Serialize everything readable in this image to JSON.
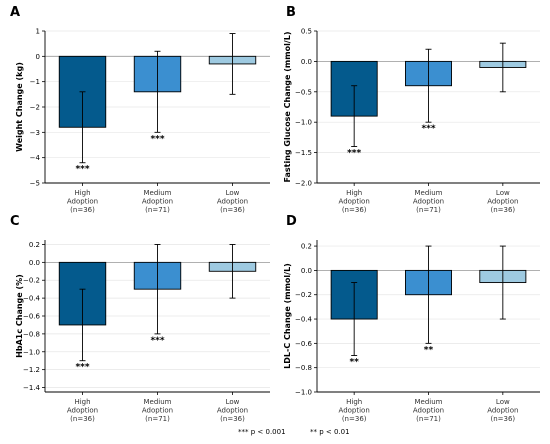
{
  "colors": {
    "high": "#045a8d",
    "medium": "#3b8fd0",
    "low": "#9ecae1"
  },
  "footnote": {
    "three_star": "*** p < 0.001",
    "two_star": "** p < 0.01"
  },
  "chart_data": [
    {
      "panel": "A",
      "type": "bar",
      "ylabel": "Weight Change (kg)",
      "ylim": [
        -5,
        1
      ],
      "yticks": [
        1,
        0,
        -1,
        -2,
        -3,
        -4,
        -5
      ],
      "categories": [
        [
          "High",
          "Adoption",
          "(n=36)"
        ],
        [
          "Medium",
          "Adoption",
          "(n=71)"
        ],
        [
          "Low",
          "Adoption",
          "(n=36)"
        ]
      ],
      "values": [
        -2.8,
        -1.4,
        -0.3
      ],
      "error_low": [
        -4.2,
        -3.0,
        -1.5
      ],
      "error_high": [
        -1.4,
        0.2,
        0.9
      ],
      "significance": [
        "***",
        "***",
        ""
      ],
      "grid": true
    },
    {
      "panel": "B",
      "type": "bar",
      "ylabel": "Fasting Glucose Change (mmol/L)",
      "ylim": [
        -2.0,
        0.5
      ],
      "yticks": [
        0.5,
        0.0,
        -0.5,
        -1.0,
        -1.5,
        -2.0
      ],
      "categories": [
        [
          "High",
          "Adoption",
          "(n=36)"
        ],
        [
          "Medium",
          "Adoption",
          "(n=71)"
        ],
        [
          "Low",
          "Adoption",
          "(n=36)"
        ]
      ],
      "values": [
        -0.9,
        -0.4,
        -0.1
      ],
      "error_low": [
        -1.4,
        -1.0,
        -0.5
      ],
      "error_high": [
        -0.4,
        0.2,
        0.3
      ],
      "significance": [
        "***",
        "***",
        ""
      ],
      "grid": true
    },
    {
      "panel": "C",
      "type": "bar",
      "ylabel": "HbA1c Change (%)",
      "ylim": [
        -1.45,
        0.25
      ],
      "yticks": [
        0.2,
        0.0,
        -0.2,
        -0.4,
        -0.6,
        -0.8,
        -1.0,
        -1.2,
        -1.4
      ],
      "categories": [
        [
          "High",
          "Adoption",
          "(n=36)"
        ],
        [
          "Medium",
          "Adoption",
          "(n=71)"
        ],
        [
          "Low",
          "Adoption",
          "(n=36)"
        ]
      ],
      "values": [
        -0.7,
        -0.3,
        -0.1
      ],
      "error_low": [
        -1.1,
        -0.8,
        -0.4
      ],
      "error_high": [
        -0.3,
        0.2,
        0.2
      ],
      "significance": [
        "***",
        "***",
        ""
      ],
      "grid": true
    },
    {
      "panel": "D",
      "type": "bar",
      "ylabel": "LDL-C Change (mmol/L)",
      "ylim": [
        -1.0,
        0.25
      ],
      "yticks": [
        0.2,
        0.0,
        -0.2,
        -0.4,
        -0.6,
        -0.8,
        -1.0
      ],
      "categories": [
        [
          "High",
          "Adoption",
          "(n=36)"
        ],
        [
          "Medium",
          "Adoption",
          "(n=71)"
        ],
        [
          "Low",
          "Adoption",
          "(n=36)"
        ]
      ],
      "values": [
        -0.4,
        -0.2,
        -0.1
      ],
      "error_low": [
        -0.7,
        -0.6,
        -0.4
      ],
      "error_high": [
        -0.1,
        0.2,
        0.2
      ],
      "significance": [
        "**",
        "**",
        ""
      ],
      "grid": true
    }
  ]
}
